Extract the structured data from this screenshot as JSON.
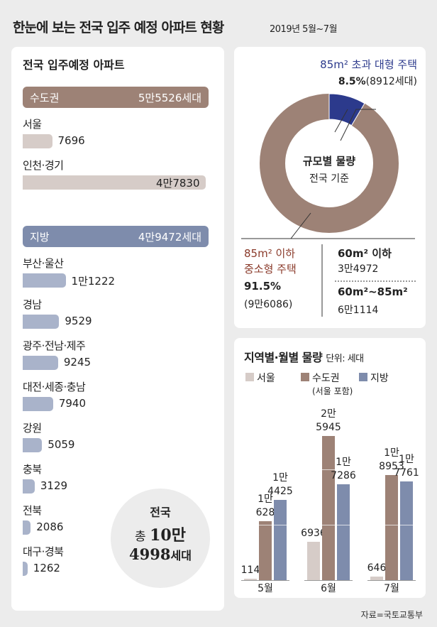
{
  "header": {
    "title": "한눈에 보는 전국 입주 예정 아파트 현황",
    "subtitle": "2019년 5월~7월"
  },
  "colors": {
    "seoul": "#d6ccc8",
    "capital": "#9d8276",
    "local": "#7e8cac",
    "navy": "#2c3a8c",
    "accent_text": "#8a3a2a"
  },
  "left_panel": {
    "title": "전국 입주예정 아파트",
    "capital": {
      "label": "수도권",
      "total": "5만5526세대",
      "regions": [
        {
          "name": "서울",
          "value": 7696,
          "label": "7696"
        },
        {
          "name": "인천·경기",
          "value": 47830,
          "label": "4만7830"
        }
      ]
    },
    "local": {
      "label": "지방",
      "total": "4만9472세대",
      "regions": [
        {
          "name": "부산·울산",
          "value": 11222,
          "label": "1만1222"
        },
        {
          "name": "경남",
          "value": 9529,
          "label": "9529"
        },
        {
          "name": "광주·전남·제주",
          "value": 9245,
          "label": "9245"
        },
        {
          "name": "대전·세종·충남",
          "value": 7940,
          "label": "7940"
        },
        {
          "name": "강원",
          "value": 5059,
          "label": "5059"
        },
        {
          "name": "충북",
          "value": 3129,
          "label": "3129"
        },
        {
          "name": "전북",
          "value": 2086,
          "label": "2086"
        },
        {
          "name": "대구·경북",
          "value": 1262,
          "label": "1262"
        }
      ]
    },
    "national": {
      "label": "전국",
      "prefix": "총",
      "big": "10만",
      "big2": "4998",
      "unit": "세대"
    }
  },
  "size_panel": {
    "large_label": "85m² 초과 대형 주택",
    "large_pct_value": 8.5,
    "large_pct": "8.5%",
    "large_count": "(8912세대)",
    "center_title": "규모별 물량",
    "center_sub": "전국 기준",
    "small_label1": "85m² 이하",
    "small_label2": "중소형 주택",
    "small_pct": "91.5%",
    "small_count": "(9만6086)",
    "b1_label": "60m² 이하",
    "b1_value": "3만4972",
    "b2_label": "60m²~85m²",
    "b2_value": "6만1114"
  },
  "chart_data": {
    "type": "bar",
    "title": "지역별·월별 물량",
    "unit": "단위: 세대",
    "categories": [
      "5월",
      "6월",
      "7월"
    ],
    "legend": [
      {
        "name": "서울"
      },
      {
        "name": "수도권",
        "note": "(서울 포함)"
      },
      {
        "name": "지방"
      }
    ],
    "series": [
      {
        "name": "서울",
        "values": [
          114,
          6936,
          646
        ],
        "labels": [
          [
            "114"
          ],
          [
            "6936"
          ],
          [
            "646"
          ]
        ]
      },
      {
        "name": "수도권",
        "values": [
          10628,
          25945,
          18953
        ],
        "labels": [
          [
            "1만",
            "628"
          ],
          [
            "2만",
            "5945"
          ],
          [
            "1만",
            "8953"
          ]
        ]
      },
      {
        "name": "지방",
        "values": [
          14425,
          17286,
          17761
        ],
        "labels": [
          [
            "1만",
            "4425"
          ],
          [
            "1만",
            "7286"
          ],
          [
            "1만",
            "7761"
          ]
        ]
      }
    ],
    "gridlines": [
      10000,
      20000
    ]
  },
  "source": "자료=국토교통부"
}
